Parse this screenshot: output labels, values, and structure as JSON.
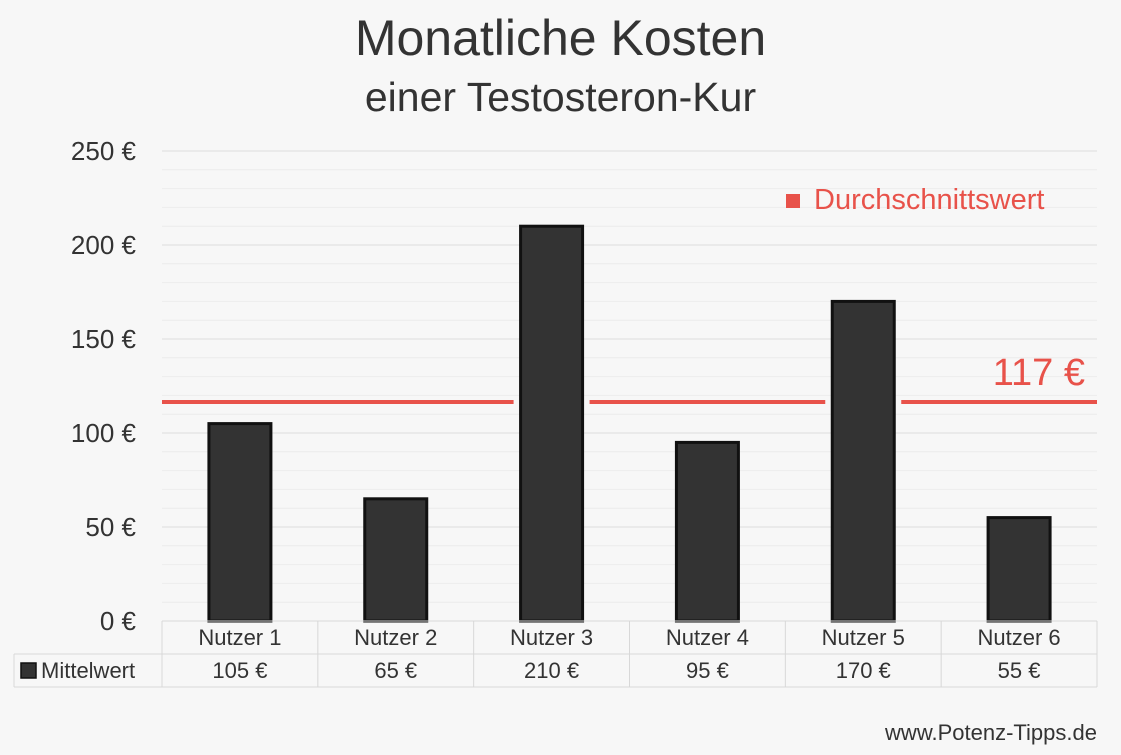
{
  "chart_data": {
    "type": "bar",
    "title": "Monatliche Kosten",
    "subtitle": "einer Testosteron-Kur",
    "categories": [
      "Nutzer 1",
      "Nutzer 2",
      "Nutzer 3",
      "Nutzer 4",
      "Nutzer 5",
      "Nutzer 6"
    ],
    "series": [
      {
        "name": "Mittelwert",
        "values": [
          105,
          65,
          210,
          95,
          170,
          55
        ],
        "labels": [
          "105 €",
          "65 €",
          "210 €",
          "95 €",
          "170 €",
          "55 €"
        ]
      }
    ],
    "ylim": [
      0,
      250
    ],
    "yticks": [
      0,
      50,
      100,
      150,
      200,
      250
    ],
    "ytick_labels": [
      "0 €",
      "50 €",
      "100 €",
      "150 €",
      "200 €",
      "250 €"
    ],
    "grid": true,
    "average": {
      "name": "Durchschnittswert",
      "value": 117,
      "label": "117 €"
    },
    "colors": {
      "bar": "#333333",
      "bar_stroke": "#111111",
      "average": "#e8524a",
      "grid": "#dddddd"
    }
  },
  "footer": {
    "source": "www.Potenz-Tipps.de"
  }
}
